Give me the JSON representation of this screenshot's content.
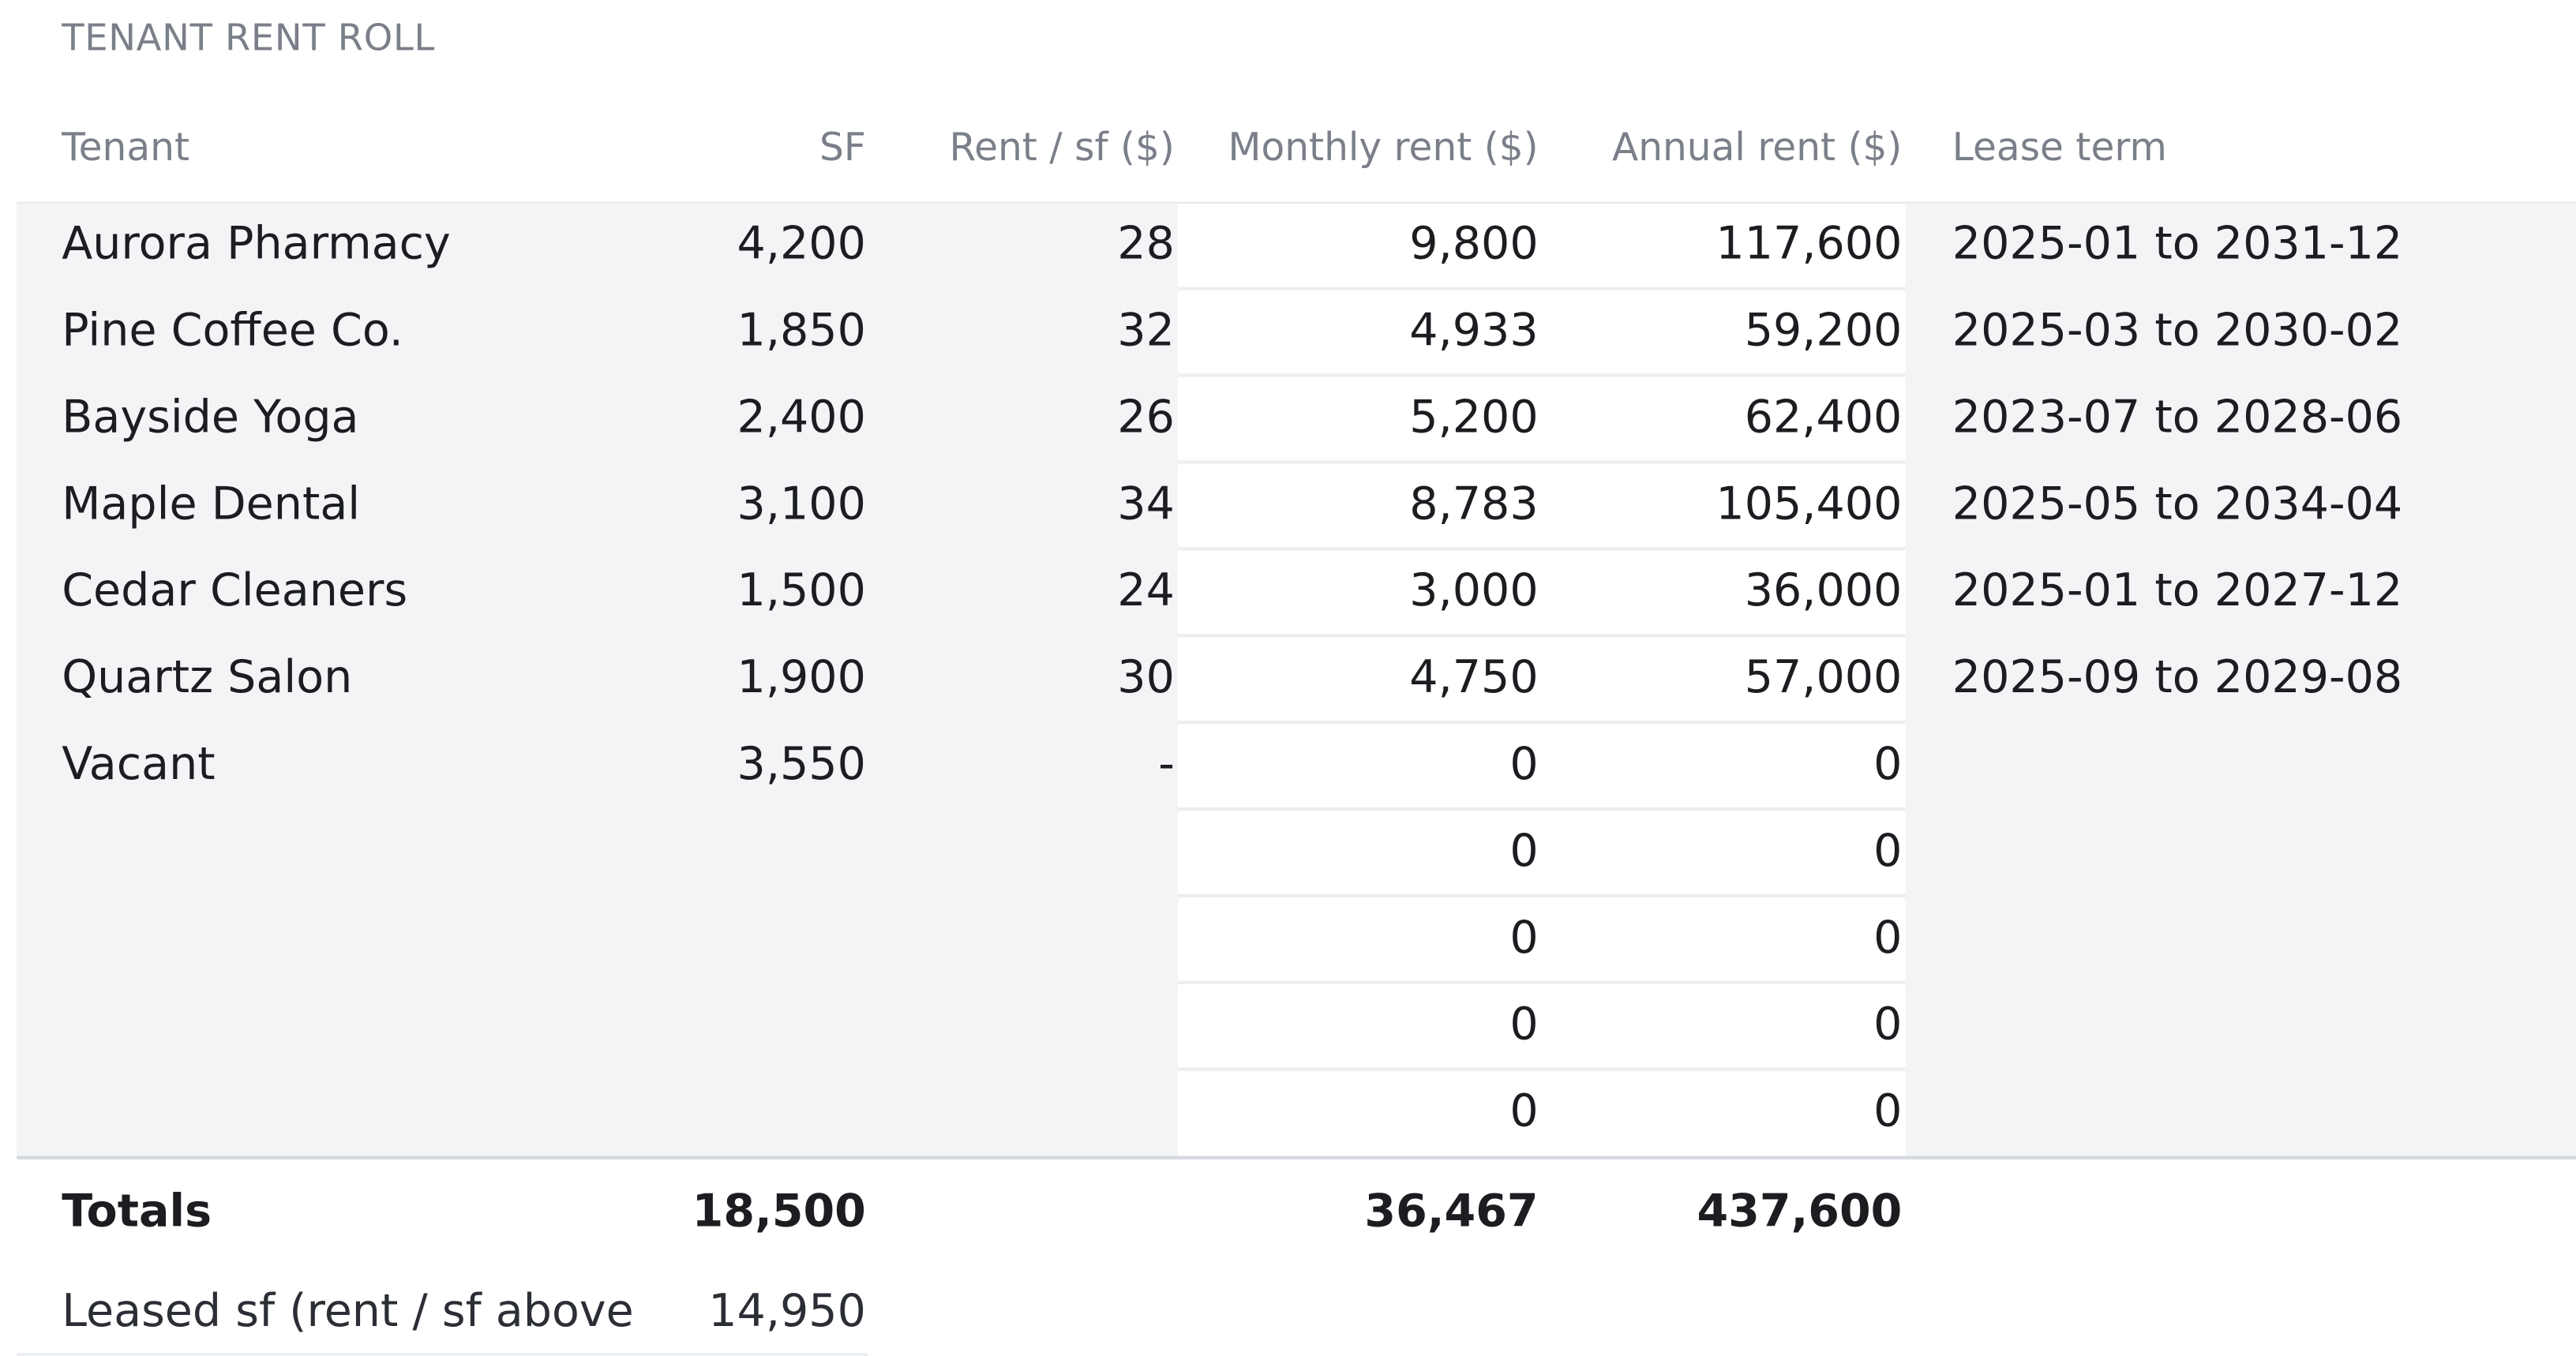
{
  "section_title": "TENANT RENT ROLL",
  "columns": {
    "tenant": "Tenant",
    "sf": "SF",
    "rent_per_sf": "Rent / sf ($)",
    "monthly_rent": "Monthly rent ($)",
    "annual_rent": "Annual rent ($)",
    "lease_term": "Lease term"
  },
  "rows": [
    {
      "tenant": "Aurora Pharmacy",
      "sf": "4,200",
      "rent_per_sf": "28",
      "monthly_rent": "9,800",
      "annual_rent": "117,600",
      "lease_term": "2025-01 to 2031-12"
    },
    {
      "tenant": "Pine Coffee Co.",
      "sf": "1,850",
      "rent_per_sf": "32",
      "monthly_rent": "4,933",
      "annual_rent": "59,200",
      "lease_term": "2025-03 to 2030-02"
    },
    {
      "tenant": "Bayside Yoga",
      "sf": "2,400",
      "rent_per_sf": "26",
      "monthly_rent": "5,200",
      "annual_rent": "62,400",
      "lease_term": "2023-07 to 2028-06"
    },
    {
      "tenant": "Maple Dental",
      "sf": "3,100",
      "rent_per_sf": "34",
      "monthly_rent": "8,783",
      "annual_rent": "105,400",
      "lease_term": "2025-05 to 2034-04"
    },
    {
      "tenant": "Cedar Cleaners",
      "sf": "1,500",
      "rent_per_sf": "24",
      "monthly_rent": "3,000",
      "annual_rent": "36,000",
      "lease_term": "2025-01 to 2027-12"
    },
    {
      "tenant": "Quartz Salon",
      "sf": "1,900",
      "rent_per_sf": "30",
      "monthly_rent": "4,750",
      "annual_rent": "57,000",
      "lease_term": "2025-09 to 2029-08"
    },
    {
      "tenant": "Vacant",
      "sf": "3,550",
      "rent_per_sf": "-",
      "monthly_rent": "0",
      "annual_rent": "0",
      "lease_term": ""
    },
    {
      "tenant": "",
      "sf": "",
      "rent_per_sf": "",
      "monthly_rent": "0",
      "annual_rent": "0",
      "lease_term": ""
    },
    {
      "tenant": "",
      "sf": "",
      "rent_per_sf": "",
      "monthly_rent": "0",
      "annual_rent": "0",
      "lease_term": ""
    },
    {
      "tenant": "",
      "sf": "",
      "rent_per_sf": "",
      "monthly_rent": "0",
      "annual_rent": "0",
      "lease_term": ""
    },
    {
      "tenant": "",
      "sf": "",
      "rent_per_sf": "",
      "monthly_rent": "0",
      "annual_rent": "0",
      "lease_term": ""
    }
  ],
  "totals": {
    "label": "Totals",
    "sf": "18,500",
    "monthly_rent": "36,467",
    "annual_rent": "437,600"
  },
  "leased": {
    "label": "Leased sf (rent / sf above",
    "sf": "14,950"
  }
}
